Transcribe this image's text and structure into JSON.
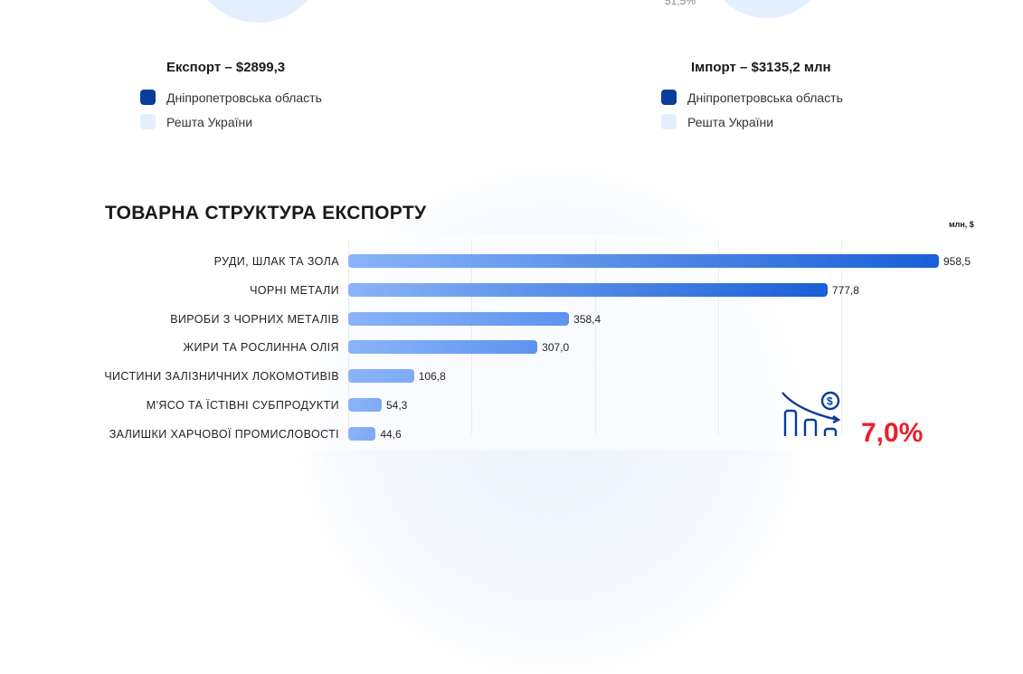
{
  "top": {
    "import_pie_label": "51,5%"
  },
  "export_legend": {
    "title": "Експорт – $2899,3",
    "items": [
      {
        "label": "Дніпропетровська область",
        "color": "#0a3d9a"
      },
      {
        "label": "Решта України",
        "color": "#e3effd"
      }
    ]
  },
  "import_legend": {
    "title": "Імпорт – $3135,2 млн",
    "items": [
      {
        "label": "Дніпропетровська область",
        "color": "#0a3d9a"
      },
      {
        "label": "Решта України",
        "color": "#e3effd"
      }
    ]
  },
  "callout": {
    "value": "7,0%",
    "icon": "chart-decline-dollar-icon"
  },
  "chart_data": {
    "type": "bar",
    "orientation": "horizontal",
    "title": "ТОВАРНА СТРУКТУРА ЕКСПОРТУ",
    "unit": "млн, $",
    "xlim": [
      0,
      1000
    ],
    "grid": true,
    "categories": [
      "РУДИ, ШЛАК ТА ЗОЛА",
      "ЧОРНІ МЕТАЛИ",
      "ВИРОБИ З ЧОРНИХ МЕТАЛІВ",
      "ЖИРИ ТА РОСЛИННА ОЛІЯ",
      "ЧИСТИНИ ЗАЛІЗНИЧНИХ ЛОКОМОТИВІВ",
      "М'ЯСО ТА ЇСТІВНІ СУБПРОДУКТИ",
      "ЗАЛИШКИ ХАРЧОВОЇ ПРОМИСЛОВОСТІ"
    ],
    "values": [
      958.5,
      777.8,
      358.4,
      307.0,
      106.8,
      54.3,
      44.6
    ],
    "labels": [
      "958,5",
      "777,8",
      "358,4",
      "307,0",
      "106,8",
      "54,3",
      "44,6"
    ]
  }
}
